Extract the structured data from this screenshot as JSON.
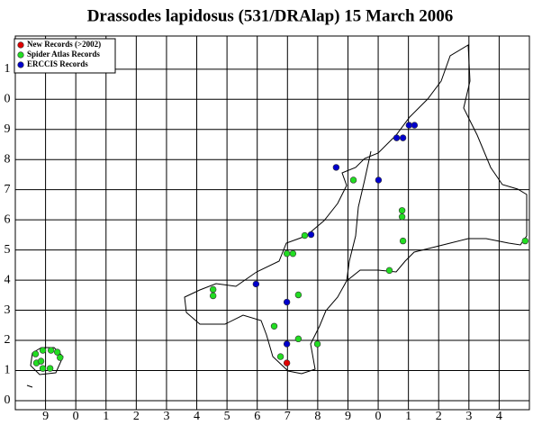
{
  "chart_data": {
    "type": "scatter",
    "title": "Drassodes lapidosus (531/DRAlap) 15 March 2006",
    "legend": "upper left",
    "grid": true,
    "xlim": [
      -1,
      16
    ],
    "ylim": [
      -0.3,
      12.1
    ],
    "xticks": [
      {
        "value": 0,
        "label": "9"
      },
      {
        "value": 1,
        "label": "0"
      },
      {
        "value": 2,
        "label": "1"
      },
      {
        "value": 3,
        "label": "2"
      },
      {
        "value": 4,
        "label": "3"
      },
      {
        "value": 5,
        "label": "4"
      },
      {
        "value": 6,
        "label": "5"
      },
      {
        "value": 7,
        "label": "6"
      },
      {
        "value": 8,
        "label": "7"
      },
      {
        "value": 9,
        "label": "8"
      },
      {
        "value": 10,
        "label": "9"
      },
      {
        "value": 11,
        "label": "0"
      },
      {
        "value": 12,
        "label": "1"
      },
      {
        "value": 13,
        "label": "2"
      },
      {
        "value": 14,
        "label": "3"
      },
      {
        "value": 15,
        "label": "4"
      }
    ],
    "yticks": [
      0,
      1,
      2,
      3,
      4,
      5,
      6,
      7,
      8,
      9,
      {
        "value": 10,
        "label": "0"
      },
      {
        "value": 11,
        "label": "1"
      }
    ],
    "series": [
      {
        "name": "New Records (>2002)",
        "color": "#e00000",
        "x": [
          7.98
        ],
        "y": [
          1.25
        ]
      },
      {
        "name": "Spider Atlas Records",
        "color": "#22dd22",
        "x": [
          10.18,
          11.79,
          11.79,
          11.82,
          15.86,
          8.57,
          7.98,
          8.18,
          11.37,
          5.54,
          5.54,
          8.36,
          7.56,
          8.36,
          8.99,
          7.77,
          -0.33,
          -0.09,
          0.18,
          0.39,
          0.48,
          -0.3,
          -0.09,
          0.15,
          -0.15
        ],
        "y": [
          7.32,
          6.31,
          6.1,
          5.3,
          5.3,
          5.48,
          4.88,
          4.88,
          4.32,
          3.69,
          3.48,
          3.51,
          2.47,
          2.05,
          1.88,
          1.46,
          1.55,
          1.67,
          1.67,
          1.61,
          1.43,
          1.25,
          1.07,
          1.07,
          1.31
        ]
      },
      {
        "name": "ERCCIS Records",
        "color": "#0000cc",
        "x": [
          12.02,
          12.2,
          11.61,
          11.82,
          9.61,
          11.01,
          8.78,
          6.96,
          7.98,
          7.98
        ],
        "y": [
          9.14,
          9.14,
          8.72,
          8.72,
          7.74,
          7.32,
          5.51,
          3.87,
          3.27,
          1.88
        ]
      }
    ]
  }
}
